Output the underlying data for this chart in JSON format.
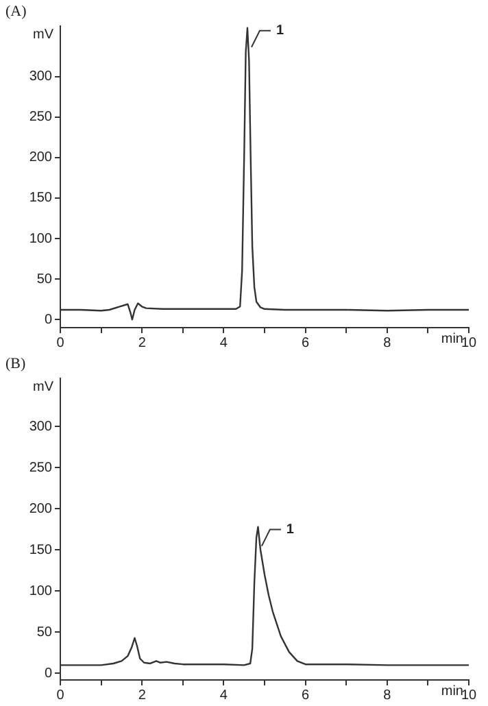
{
  "chart_data": [
    {
      "type": "line",
      "title": "(A)",
      "xlabel": "min",
      "ylabel": "mV",
      "xlim": [
        0,
        10
      ],
      "ylim": [
        -10,
        362
      ],
      "xticks": [
        0,
        {
          "value": 1,
          "label": null
        },
        2,
        {
          "value": 3,
          "label": null
        },
        4,
        {
          "value": 5,
          "label": null
        },
        6,
        {
          "value": 7,
          "label": null
        },
        8,
        {
          "value": 9,
          "label": null
        },
        10
      ],
      "yticks": [
        0,
        50,
        100,
        150,
        200,
        250,
        300
      ],
      "grid": false,
      "legend": false,
      "marker": "none",
      "line_style": "solid",
      "annotations": [
        {
          "text": "1",
          "x": 4.58,
          "y": 360
        }
      ],
      "series": [
        {
          "color": "#333333",
          "x": [
            0,
            0.5,
            1,
            1.2,
            1.45,
            1.65,
            1.72,
            1.76,
            1.82,
            1.9,
            2.0,
            2.1,
            2.5,
            3,
            3.5,
            4,
            4.3,
            4.4,
            4.45,
            4.5,
            4.54,
            4.58,
            4.62,
            4.66,
            4.7,
            4.75,
            4.8,
            4.9,
            5.0,
            5.5,
            6,
            7,
            8,
            9,
            10
          ],
          "values": [
            12,
            12,
            11,
            12,
            16,
            19,
            8,
            0,
            12,
            20,
            16,
            14,
            13,
            13,
            13,
            13,
            13,
            16,
            60,
            200,
            330,
            360,
            320,
            200,
            90,
            40,
            22,
            15,
            13,
            12,
            12,
            12,
            11,
            12,
            12
          ]
        }
      ]
    },
    {
      "type": "line",
      "title": "(B)",
      "xlabel": "min",
      "ylabel": "mV",
      "xlim": [
        0,
        10
      ],
      "ylim": [
        -8,
        358
      ],
      "xticks": [
        0,
        {
          "value": 1,
          "label": null
        },
        2,
        {
          "value": 3,
          "label": null
        },
        4,
        {
          "value": 5,
          "label": null
        },
        6,
        {
          "value": 7,
          "label": null
        },
        8,
        {
          "value": 9,
          "label": null
        },
        10
      ],
      "yticks": [
        0,
        50,
        100,
        150,
        200,
        250,
        300
      ],
      "grid": false,
      "legend": false,
      "marker": "none",
      "line_style": "solid",
      "annotations": [
        {
          "text": "1",
          "x": 4.83,
          "y": 178
        }
      ],
      "series": [
        {
          "color": "#333333",
          "x": [
            0,
            0.5,
            1,
            1.3,
            1.5,
            1.65,
            1.75,
            1.82,
            1.88,
            1.95,
            2.05,
            2.2,
            2.35,
            2.45,
            2.6,
            2.8,
            3,
            3.5,
            4,
            4.5,
            4.65,
            4.7,
            4.75,
            4.8,
            4.84,
            4.9,
            5.0,
            5.1,
            5.2,
            5.4,
            5.6,
            5.8,
            6,
            7,
            8,
            9,
            10
          ],
          "values": [
            10,
            10,
            10,
            12,
            15,
            21,
            32,
            43,
            33,
            18,
            13,
            12,
            15,
            13,
            14,
            12,
            11,
            11,
            11,
            10,
            12,
            30,
            110,
            165,
            178,
            150,
            120,
            95,
            75,
            45,
            26,
            15,
            11,
            11,
            10,
            10,
            10
          ]
        }
      ]
    }
  ]
}
